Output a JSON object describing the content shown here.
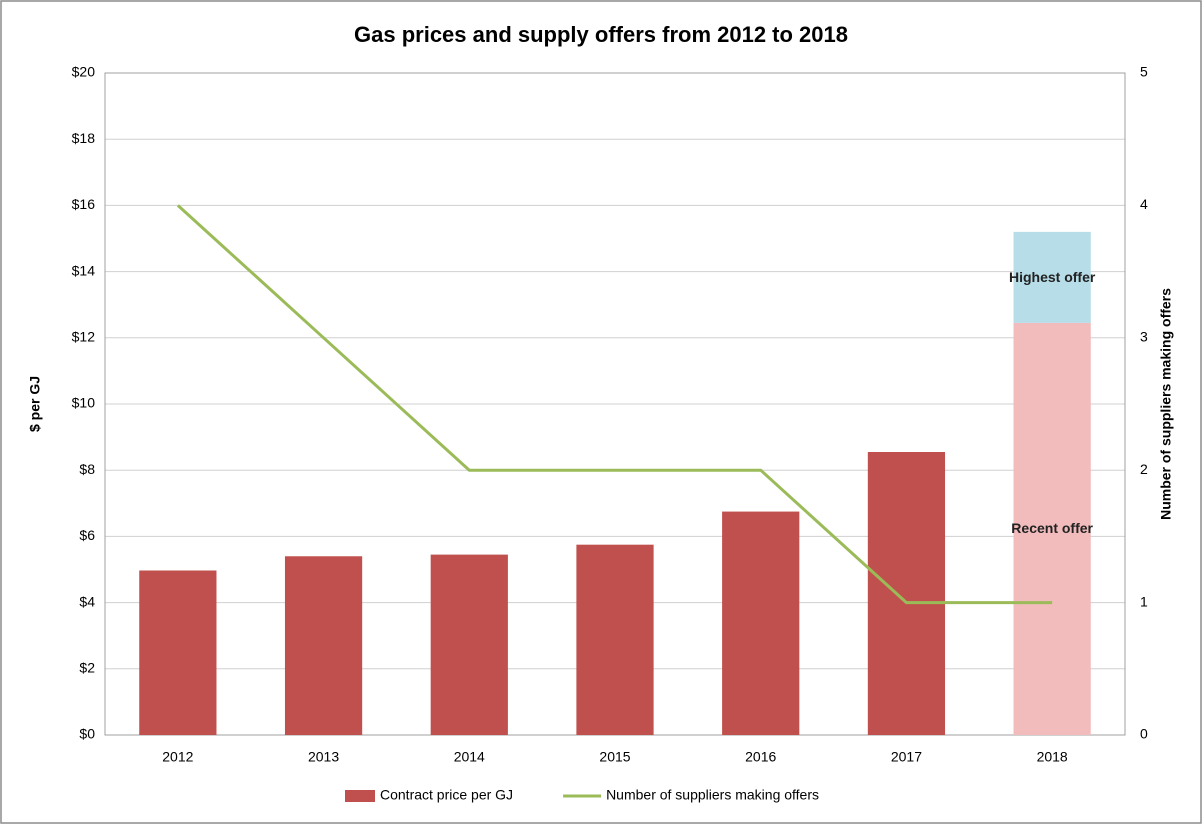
{
  "chart_data": {
    "type": "bar-line",
    "title": "Gas prices and supply offers from 2012 to 2018",
    "ylabel": "$ per GJ",
    "y2label": "Number of suppliers making offers",
    "categories": [
      "2012",
      "2013",
      "2014",
      "2015",
      "2016",
      "2017",
      "2018"
    ],
    "series": [
      {
        "name": "Contract price per GJ",
        "color": "#c0504d",
        "type": "bar",
        "values": [
          4.97,
          5.4,
          5.45,
          5.75,
          6.75,
          8.55,
          null
        ]
      },
      {
        "name": "Number of suppliers making offers",
        "color": "#9bbb59",
        "type": "line",
        "axis": "y2",
        "values": [
          4,
          3,
          2,
          2,
          2,
          1,
          1
        ]
      }
    ],
    "offers": {
      "category": "2018",
      "segments": [
        {
          "name": "Recent offer",
          "color": "#f2bcbc",
          "value": 12.45
        },
        {
          "name": "Highest offer",
          "color": "#b7dde8",
          "value": 2.75
        }
      ]
    },
    "ylim": [
      0,
      20
    ],
    "yticks": [
      {
        "value": 0,
        "label": "$0"
      },
      {
        "value": 2,
        "label": "$2"
      },
      {
        "value": 4,
        "label": "$4"
      },
      {
        "value": 6,
        "label": "$6"
      },
      {
        "value": 8,
        "label": "$8"
      },
      {
        "value": 10,
        "label": "$10"
      },
      {
        "value": 12,
        "label": "$12"
      },
      {
        "value": 14,
        "label": "$14"
      },
      {
        "value": 16,
        "label": "$16"
      },
      {
        "value": 18,
        "label": "$18"
      },
      {
        "value": 20,
        "label": "$20"
      }
    ],
    "y2lim": [
      0,
      5
    ],
    "y2ticks": [
      0,
      1,
      2,
      3,
      4,
      5
    ],
    "grid": true,
    "legend": "bottom"
  }
}
